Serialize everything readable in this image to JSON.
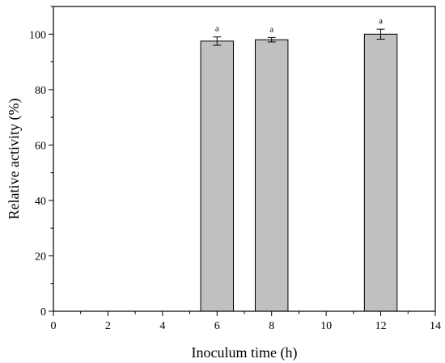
{
  "chart_data": {
    "type": "bar",
    "xlabel": "Inoculum time (h)",
    "ylabel": "Relative activity (%)",
    "xlim": [
      0,
      14
    ],
    "ylim": [
      0,
      110
    ],
    "xticks": [
      "0",
      "2",
      "4",
      "6",
      "8",
      "10",
      "12",
      "14"
    ],
    "yticks": [
      "0",
      "20",
      "40",
      "60",
      "80",
      "100"
    ],
    "bar_width": 1.2,
    "bar_color": "#c0c0c0",
    "grid": false,
    "legend": "none",
    "bars": [
      {
        "x": 6,
        "value": 97.5,
        "error": 1.5,
        "label": "a"
      },
      {
        "x": 8,
        "value": 98.0,
        "error": 0.8,
        "label": "a"
      },
      {
        "x": 12,
        "value": 100.0,
        "error": 1.8,
        "label": "a"
      }
    ]
  }
}
